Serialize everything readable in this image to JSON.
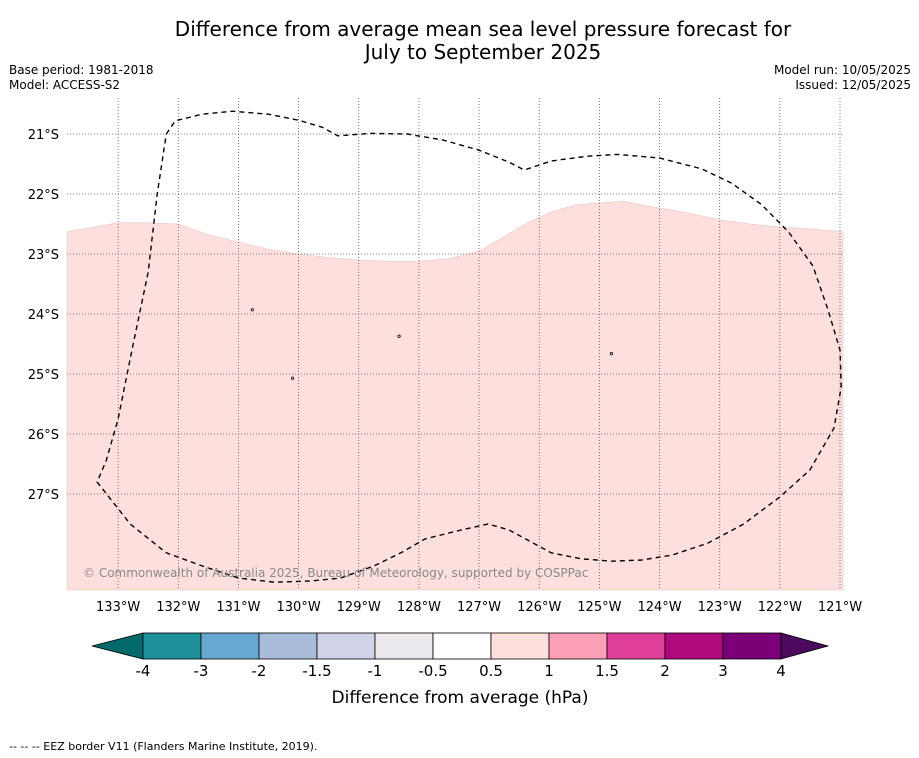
{
  "title_line1": "Difference from average mean sea level pressure forecast for",
  "title_line2": "July to September 2025",
  "base_period": "Base period: 1981-2018",
  "model": "Model: ACCESS-S2",
  "model_run": "Model run: 10/05/2025",
  "issued": "Issued: 12/05/2025",
  "copyright": "© Commonwealth of Australia 2025, Bureau of Meteorology, supported by COSPPac",
  "footnote": "-- -- -- EEZ border V11 (Flanders Marine Institute, 2019).",
  "map": {
    "lon_range": [
      -133.85,
      -120.95
    ],
    "lat_range": [
      -28.6,
      -20.4
    ],
    "lon_ticks": [
      -133,
      -132,
      -131,
      -130,
      -129,
      -128,
      -127,
      -126,
      -125,
      -124,
      -123,
      -122,
      -121
    ],
    "lon_tick_labels": [
      "133°W",
      "132°W",
      "131°W",
      "130°W",
      "129°W",
      "128°W",
      "127°W",
      "126°W",
      "125°W",
      "124°W",
      "123°W",
      "122°W",
      "121°W"
    ],
    "lat_ticks": [
      -21,
      -22,
      -23,
      -24,
      -25,
      -26,
      -27
    ],
    "lat_tick_labels": [
      "21°S",
      "22°S",
      "23°S",
      "24°S",
      "25°S",
      "26°S",
      "27°S"
    ],
    "grid": true,
    "shaded_category": "0.5 to 1",
    "shaded_color": "#fde0de",
    "shaded_region_boundary": [
      [
        -133.85,
        -22.63
      ],
      [
        -133,
        -22.48
      ],
      [
        -132.5,
        -22.48
      ],
      [
        -132,
        -22.5
      ],
      [
        -131.5,
        -22.68
      ],
      [
        -131,
        -22.8
      ],
      [
        -130.5,
        -22.92
      ],
      [
        -130,
        -23.0
      ],
      [
        -129.5,
        -23.06
      ],
      [
        -129,
        -23.1
      ],
      [
        -128.5,
        -23.12
      ],
      [
        -128,
        -23.12
      ],
      [
        -127.5,
        -23.08
      ],
      [
        -127,
        -22.95
      ],
      [
        -126.6,
        -22.72
      ],
      [
        -126.2,
        -22.48
      ],
      [
        -125.8,
        -22.3
      ],
      [
        -125.4,
        -22.18
      ],
      [
        -125,
        -22.15
      ],
      [
        -124.6,
        -22.12
      ],
      [
        -124.2,
        -22.2
      ],
      [
        -123.6,
        -22.3
      ],
      [
        -123,
        -22.43
      ],
      [
        -122.5,
        -22.5
      ],
      [
        -122,
        -22.55
      ],
      [
        -121.5,
        -22.58
      ],
      [
        -120.95,
        -22.63
      ]
    ],
    "eez_border": [
      [
        -132.2,
        -21.0
      ],
      [
        -132.05,
        -20.78
      ],
      [
        -131.6,
        -20.67
      ],
      [
        -131.1,
        -20.62
      ],
      [
        -130.5,
        -20.67
      ],
      [
        -130.0,
        -20.77
      ],
      [
        -129.6,
        -20.89
      ],
      [
        -129.35,
        -21.03
      ],
      [
        -128.8,
        -20.99
      ],
      [
        -128.2,
        -21.0
      ],
      [
        -127.6,
        -21.1
      ],
      [
        -127.0,
        -21.27
      ],
      [
        -126.5,
        -21.47
      ],
      [
        -126.25,
        -21.6
      ],
      [
        -125.8,
        -21.45
      ],
      [
        -125.2,
        -21.37
      ],
      [
        -124.7,
        -21.34
      ],
      [
        -124.0,
        -21.4
      ],
      [
        -123.3,
        -21.58
      ],
      [
        -122.8,
        -21.82
      ],
      [
        -122.3,
        -22.18
      ],
      [
        -121.85,
        -22.64
      ],
      [
        -121.45,
        -23.2
      ],
      [
        -121.2,
        -23.93
      ],
      [
        -121.0,
        -24.6
      ],
      [
        -120.98,
        -25.22
      ],
      [
        -121.1,
        -25.9
      ],
      [
        -121.5,
        -26.6
      ],
      [
        -122.0,
        -27.05
      ],
      [
        -122.6,
        -27.5
      ],
      [
        -123.2,
        -27.82
      ],
      [
        -123.8,
        -28.02
      ],
      [
        -124.3,
        -28.1
      ],
      [
        -124.8,
        -28.12
      ],
      [
        -125.3,
        -28.08
      ],
      [
        -125.8,
        -27.98
      ],
      [
        -126.5,
        -27.6
      ],
      [
        -126.85,
        -27.5
      ],
      [
        -127.3,
        -27.6
      ],
      [
        -127.9,
        -27.75
      ],
      [
        -128.3,
        -27.98
      ],
      [
        -128.75,
        -28.2
      ],
      [
        -129.3,
        -28.4
      ],
      [
        -129.8,
        -28.45
      ],
      [
        -130.4,
        -28.47
      ],
      [
        -131.0,
        -28.4
      ],
      [
        -131.6,
        -28.2
      ],
      [
        -132.2,
        -27.98
      ],
      [
        -132.8,
        -27.5
      ],
      [
        -133.35,
        -26.8
      ],
      [
        -133.2,
        -26.45
      ],
      [
        -133.0,
        -25.75
      ],
      [
        -132.75,
        -24.5
      ],
      [
        -132.5,
        -23.3
      ],
      [
        -132.35,
        -22.0
      ],
      [
        -132.2,
        -21.0
      ]
    ],
    "islands": [
      [
        -130.77,
        -23.93
      ],
      [
        -128.33,
        -24.37
      ],
      [
        -124.8,
        -24.66
      ],
      [
        -130.1,
        -25.07
      ]
    ]
  },
  "colorbar": {
    "label": "Difference from average (hPa)",
    "ticks": [
      "-4",
      "-3",
      "-2",
      "-1.5",
      "-1",
      "-0.5",
      "0.5",
      "1",
      "1.5",
      "2",
      "3",
      "4"
    ],
    "low_extend_color": "#04696a",
    "high_extend_color": "#4b0a5e",
    "colors": [
      "#1c8f98",
      "#67a8d0",
      "#a8bcda",
      "#d0d2e7",
      "#ebe8ee",
      "#ffffff",
      "#fde0de",
      "#fca0b8",
      "#df3e99",
      "#af0a7d",
      "#7b0078"
    ]
  }
}
